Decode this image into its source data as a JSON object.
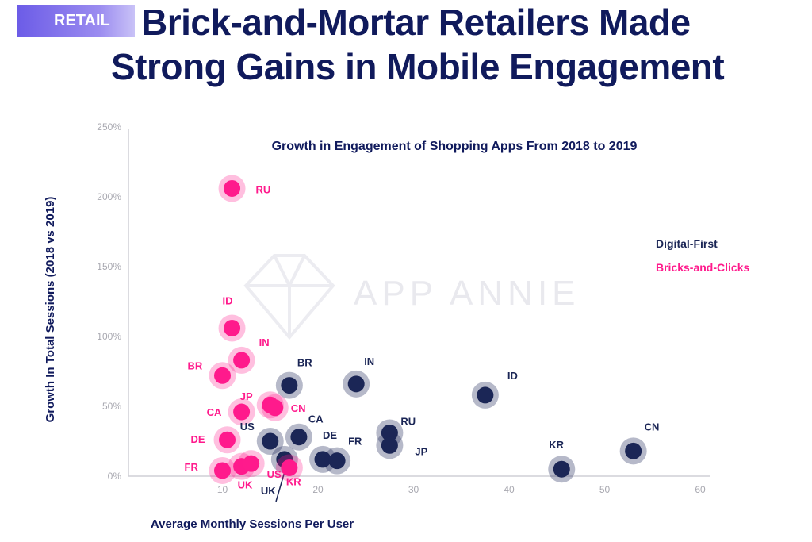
{
  "badge": "RETAIL",
  "headline": {
    "line1": "Brick-and-Mortar  Retailers Made",
    "line2": "Strong Gains in Mobile Engagement"
  },
  "watermark": "APP ANNIE",
  "colors": {
    "digital_first": "#1b2656",
    "bricks_and_clicks": "#ff1a8c",
    "title": "#101a5c",
    "tick": "#a8a8b0",
    "axis": "#cfcfd6"
  },
  "chart_data": {
    "type": "scatter",
    "title": "Growth in Engagement of Shopping Apps From 2018 to 2019",
    "xlabel": "Average Monthly Sessions Per User",
    "ylabel": "Growth In Total Sessions (2018 vs 2019)",
    "xlim": [
      0,
      60
    ],
    "ylim": [
      0,
      250
    ],
    "xticks": [
      "10",
      "20",
      "30",
      "40",
      "50",
      "60"
    ],
    "yticks": [
      "0%",
      "50%",
      "100%",
      "150%",
      "200%",
      "250%"
    ],
    "legend_position": "right",
    "series": [
      {
        "name": "Digital-First",
        "color": "#1b2656",
        "points": [
          {
            "label": "BR",
            "x": 17,
            "y": 65
          },
          {
            "label": "IN",
            "x": 24,
            "y": 66
          },
          {
            "label": "ID",
            "x": 37.5,
            "y": 58
          },
          {
            "label": "CN",
            "x": 53,
            "y": 18
          },
          {
            "label": "US",
            "x": 15,
            "y": 25
          },
          {
            "label": "CA",
            "x": 18,
            "y": 28
          },
          {
            "label": "RU",
            "x": 27.5,
            "y": 31
          },
          {
            "label": "JP",
            "x": 27.5,
            "y": 22
          },
          {
            "label": "DE",
            "x": 20.5,
            "y": 12
          },
          {
            "label": "FR",
            "x": 22,
            "y": 11
          },
          {
            "label": "UK",
            "x": 16.5,
            "y": 12
          },
          {
            "label": "KR",
            "x": 45.5,
            "y": 5
          }
        ]
      },
      {
        "name": "Bricks-and-Clicks",
        "color": "#ff1a8c",
        "points": [
          {
            "label": "RU",
            "x": 11,
            "y": 206
          },
          {
            "label": "ID",
            "x": 11,
            "y": 106
          },
          {
            "label": "IN",
            "x": 12,
            "y": 83
          },
          {
            "label": "BR",
            "x": 10,
            "y": 72
          },
          {
            "label": "JP",
            "x": 15,
            "y": 51
          },
          {
            "label": "CA",
            "x": 12,
            "y": 46
          },
          {
            "label": "CN",
            "x": 15.5,
            "y": 49
          },
          {
            "label": "DE",
            "x": 10.5,
            "y": 26
          },
          {
            "label": "FR",
            "x": 10,
            "y": 4
          },
          {
            "label": "UK",
            "x": 12,
            "y": 7
          },
          {
            "label": "US",
            "x": 13,
            "y": 9
          },
          {
            "label": "KR",
            "x": 17,
            "y": 6
          }
        ]
      }
    ]
  }
}
